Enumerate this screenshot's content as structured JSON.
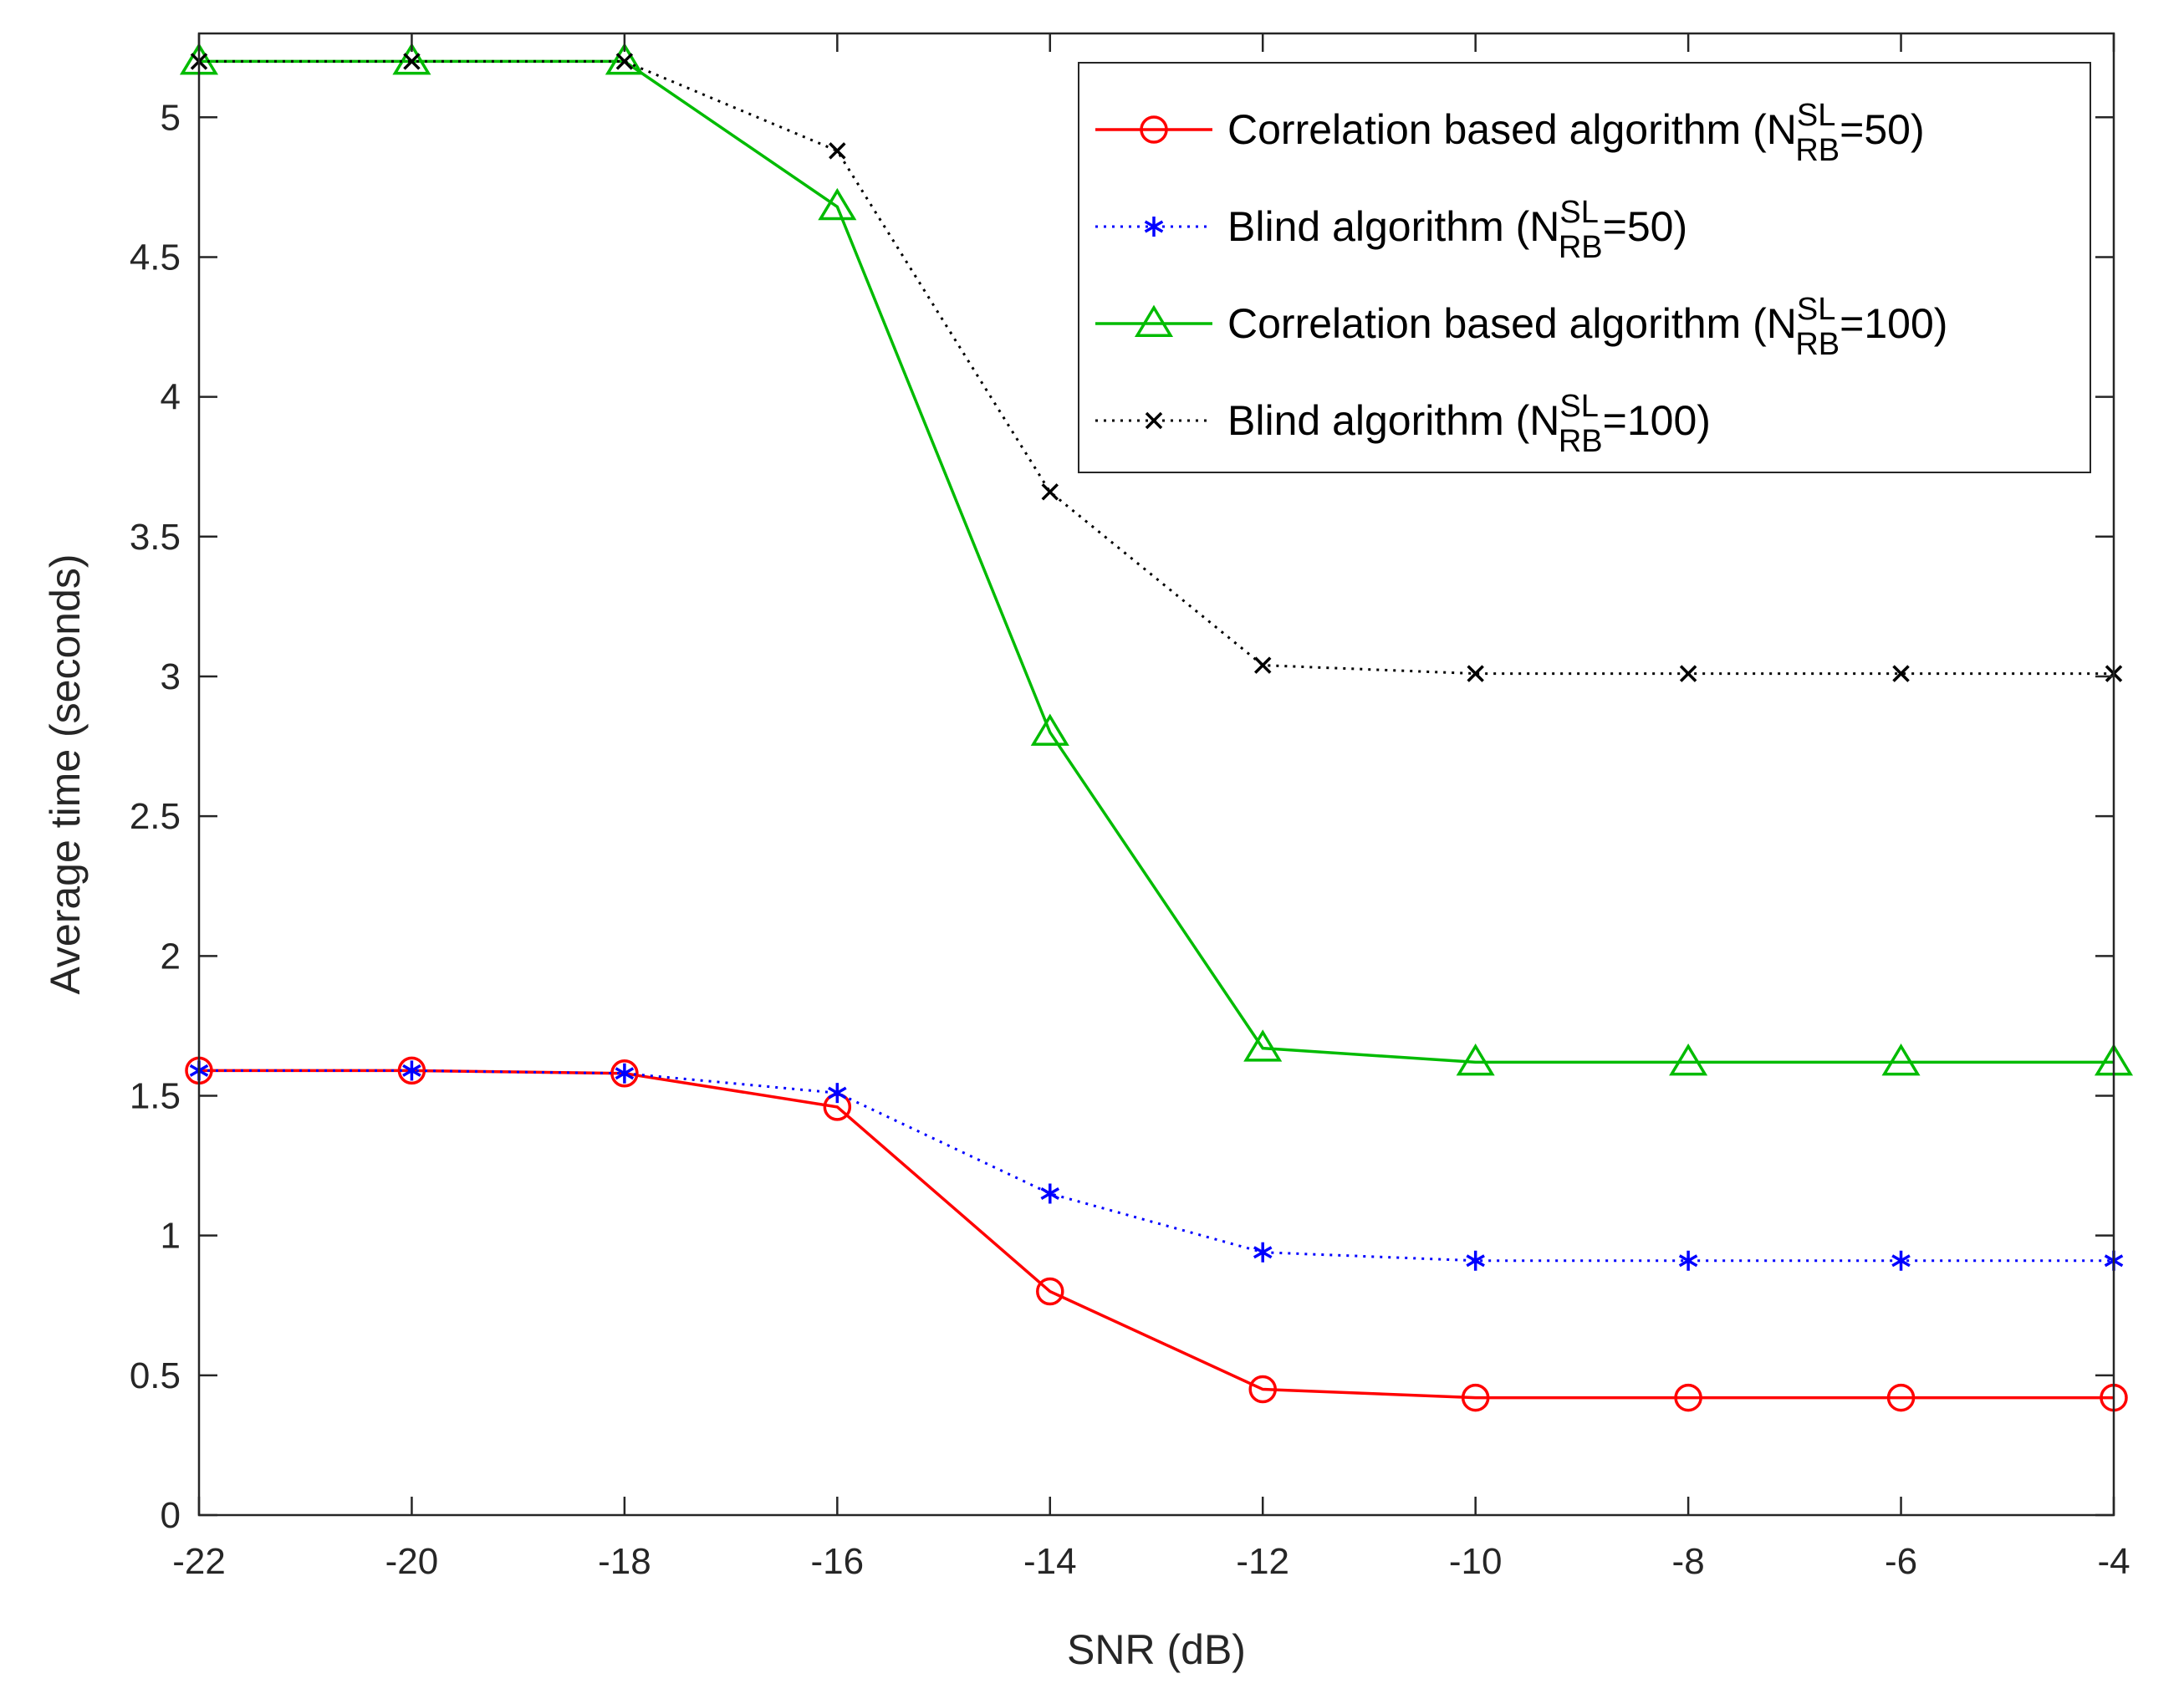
{
  "chart_data": {
    "type": "line",
    "title": "",
    "xlabel": "SNR (dB)",
    "ylabel": "Average time (seconds)",
    "xlim": [
      -22,
      -4
    ],
    "ylim": [
      0,
      5.3
    ],
    "grid": false,
    "legend_position": "top-right",
    "x": [
      -22,
      -20,
      -18,
      -16,
      -14,
      -12,
      -10,
      -8,
      -6,
      -4
    ],
    "x_ticks": [
      "-22",
      "-20",
      "-18",
      "-16",
      "-14",
      "-12",
      "-10",
      "-8",
      "-6",
      "-4"
    ],
    "y_ticks": [
      {
        "value": 0,
        "label": "0"
      },
      {
        "value": 0.5,
        "label": "0.5"
      },
      {
        "value": 1,
        "label": "1"
      },
      {
        "value": 1.5,
        "label": "1.5"
      },
      {
        "value": 2,
        "label": "2"
      },
      {
        "value": 2.5,
        "label": "2.5"
      },
      {
        "value": 3,
        "label": "3"
      },
      {
        "value": 3.5,
        "label": "3.5"
      },
      {
        "value": 4,
        "label": "4"
      },
      {
        "value": 4.5,
        "label": "4.5"
      },
      {
        "value": 5,
        "label": "5"
      }
    ],
    "series": [
      {
        "name": "Correlation based algorithm (N^SL_RB=50)",
        "legend_prefix": "Correlation based algorithm (N",
        "legend_sup": "SL",
        "legend_sub": "RB",
        "legend_suffix": "=50)",
        "color": "#ff0000",
        "line_style": "solid",
        "marker": "circle",
        "values": [
          1.59,
          1.59,
          1.58,
          1.46,
          0.8,
          0.45,
          0.42,
          0.42,
          0.42,
          0.42
        ]
      },
      {
        "name": "Blind algorithm (N^SL_RB=50)",
        "legend_prefix": "Blind algorithm (N",
        "legend_sup": "SL",
        "legend_sub": "RB",
        "legend_suffix": "=50)",
        "color": "#0000ff",
        "line_style": "dotted",
        "marker": "asterisk",
        "values": [
          1.59,
          1.59,
          1.58,
          1.51,
          1.15,
          0.94,
          0.91,
          0.91,
          0.91,
          0.91
        ]
      },
      {
        "name": "Correlation based algorithm (N^SL_RB=100)",
        "legend_prefix": "Correlation based algorithm (N",
        "legend_sup": "SL",
        "legend_sub": "RB",
        "legend_suffix": "=100)",
        "color": "#00bb00",
        "line_style": "solid",
        "marker": "triangle",
        "values": [
          5.2,
          5.2,
          5.2,
          4.68,
          2.8,
          1.67,
          1.62,
          1.62,
          1.62,
          1.62
        ]
      },
      {
        "name": "Blind algorithm (N^SL_RB=100)",
        "legend_prefix": "Blind algorithm (N",
        "legend_sup": "SL",
        "legend_sub": "RB",
        "legend_suffix": "=100)",
        "color": "#000000",
        "line_style": "dotted",
        "marker": "x",
        "values": [
          5.2,
          5.2,
          5.2,
          4.88,
          3.66,
          3.04,
          3.01,
          3.01,
          3.01,
          3.01
        ]
      }
    ]
  }
}
